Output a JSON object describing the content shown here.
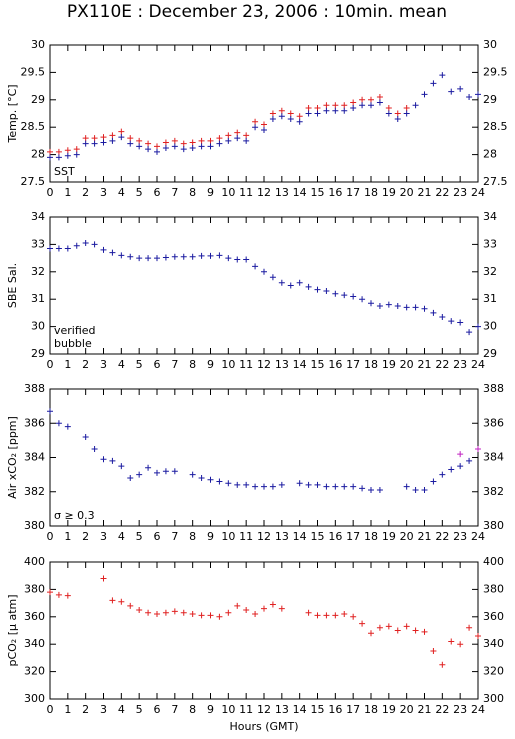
{
  "title": "PX110E : December 23, 2006 : 10min. mean",
  "chart_data": [
    {
      "type": "scatter",
      "ylabel": "Temp. [°C]",
      "xlim": [
        0,
        24
      ],
      "xticks": [
        0,
        1,
        2,
        3,
        4,
        5,
        6,
        7,
        8,
        9,
        10,
        11,
        12,
        13,
        14,
        15,
        16,
        17,
        18,
        19,
        20,
        21,
        22,
        23,
        24
      ],
      "ylim": [
        27.5,
        30
      ],
      "yticks": [
        27.5,
        28,
        28.5,
        29,
        29.5,
        30
      ],
      "x": [
        0,
        0.5,
        1,
        1.5,
        2,
        2.5,
        3,
        3.5,
        4,
        4.5,
        5,
        5.5,
        6,
        6.5,
        7,
        7.5,
        8,
        8.5,
        9,
        9.5,
        10,
        10.5,
        11,
        11.5,
        12,
        12.5,
        13,
        13.5,
        14,
        14.5,
        15,
        15.5,
        16,
        16.5,
        17,
        17.5,
        18,
        18.5,
        19,
        19.5,
        20,
        20.5,
        21,
        21.5,
        22,
        22.5,
        23,
        23.5,
        24
      ],
      "series": [
        {
          "color": "#e02020",
          "values": [
            28.05,
            28.05,
            28.08,
            28.1,
            28.3,
            28.3,
            28.32,
            28.35,
            28.42,
            28.3,
            28.25,
            28.2,
            28.15,
            28.22,
            28.25,
            28.2,
            28.22,
            28.25,
            28.25,
            28.3,
            28.35,
            28.4,
            28.35,
            28.6,
            28.55,
            28.75,
            28.8,
            28.75,
            28.7,
            28.85,
            28.85,
            28.9,
            28.9,
            28.9,
            28.95,
            29.0,
            29.0,
            29.05,
            28.85,
            28.75,
            28.85,
            null,
            null,
            null,
            null,
            null,
            null,
            null,
            null
          ]
        },
        {
          "name": "SST",
          "color": "#1a1aa0",
          "values": [
            27.95,
            27.95,
            27.98,
            28.0,
            28.2,
            28.2,
            28.22,
            28.25,
            28.32,
            28.2,
            28.15,
            28.1,
            28.05,
            28.12,
            28.15,
            28.1,
            28.12,
            28.15,
            28.15,
            28.2,
            28.25,
            28.3,
            28.25,
            28.5,
            28.45,
            28.65,
            28.7,
            28.65,
            28.6,
            28.75,
            28.75,
            28.8,
            28.8,
            28.8,
            28.85,
            28.9,
            28.9,
            28.95,
            28.75,
            28.65,
            28.75,
            28.9,
            29.1,
            29.3,
            29.45,
            29.15,
            29.2,
            29.05,
            29.1
          ]
        }
      ]
    },
    {
      "type": "scatter",
      "ylabel": "SBE Sal.",
      "xlim": [
        0,
        24
      ],
      "xticks": [
        0,
        1,
        2,
        3,
        4,
        5,
        6,
        7,
        8,
        9,
        10,
        11,
        12,
        13,
        14,
        15,
        16,
        17,
        18,
        19,
        20,
        21,
        22,
        23,
        24
      ],
      "ylim": [
        29,
        34
      ],
      "yticks": [
        29,
        30,
        31,
        32,
        33,
        34
      ],
      "x": [
        0,
        0.5,
        1,
        1.5,
        2,
        2.5,
        3,
        3.5,
        4,
        4.5,
        5,
        5.5,
        6,
        6.5,
        7,
        7.5,
        8,
        8.5,
        9,
        9.5,
        10,
        10.5,
        11,
        11.5,
        12,
        12.5,
        13,
        13.5,
        14,
        14.5,
        15,
        15.5,
        16,
        16.5,
        17,
        17.5,
        18,
        18.5,
        19,
        19.5,
        20,
        20.5,
        21,
        21.5,
        22,
        22.5,
        23,
        23.5,
        24
      ],
      "series": [
        {
          "name": "verified",
          "color": "#1a1aa0",
          "values": [
            32.85,
            32.85,
            32.85,
            32.95,
            33.05,
            33.0,
            32.8,
            32.7,
            32.6,
            32.55,
            32.5,
            32.5,
            32.5,
            32.52,
            32.55,
            32.55,
            32.55,
            32.58,
            32.58,
            32.6,
            32.5,
            32.45,
            32.45,
            32.2,
            32.0,
            31.8,
            31.6,
            31.5,
            31.6,
            31.45,
            31.35,
            31.3,
            31.2,
            31.15,
            31.1,
            31.0,
            30.85,
            30.75,
            30.8,
            30.75,
            30.7,
            30.7,
            30.65,
            30.5,
            30.35,
            30.2,
            30.15,
            29.8,
            30.0
          ]
        },
        {
          "name": "bubble",
          "color": "#c020c0",
          "values": [
            null,
            null,
            null,
            null,
            null,
            null,
            null,
            null,
            null,
            null,
            null,
            null,
            null,
            null,
            null,
            null,
            null,
            null,
            null,
            null,
            null,
            null,
            null,
            null,
            null,
            null,
            null,
            null,
            null,
            null,
            null,
            null,
            null,
            null,
            null,
            null,
            null,
            null,
            null,
            null,
            null,
            null,
            null,
            null,
            null,
            null,
            null,
            null,
            null
          ]
        }
      ]
    },
    {
      "type": "scatter",
      "ylabel": "Air xCO₂ [ppm]",
      "xlim": [
        0,
        24
      ],
      "xticks": [
        0,
        1,
        2,
        3,
        4,
        5,
        6,
        7,
        8,
        9,
        10,
        11,
        12,
        13,
        14,
        15,
        16,
        17,
        18,
        19,
        20,
        21,
        22,
        23,
        24
      ],
      "ylim": [
        380,
        388
      ],
      "yticks": [
        380,
        382,
        384,
        386,
        388
      ],
      "x": [
        0,
        0.5,
        1,
        1.5,
        2,
        2.5,
        3,
        3.5,
        4,
        4.5,
        5,
        5.5,
        6,
        6.5,
        7,
        7.5,
        8,
        8.5,
        9,
        9.5,
        10,
        10.5,
        11,
        11.5,
        12,
        12.5,
        13,
        13.5,
        14,
        14.5,
        15,
        15.5,
        16,
        16.5,
        17,
        17.5,
        18,
        18.5,
        19,
        19.5,
        20,
        20.5,
        21,
        21.5,
        22,
        22.5,
        23,
        23.5,
        24
      ],
      "series": [
        {
          "color": "#1a1aa0",
          "values": [
            386.7,
            386.0,
            385.8,
            null,
            385.2,
            384.5,
            383.9,
            383.8,
            383.5,
            382.8,
            383.0,
            383.4,
            383.1,
            383.2,
            383.2,
            null,
            383.0,
            382.8,
            382.7,
            382.6,
            382.5,
            382.4,
            382.4,
            382.3,
            382.3,
            382.3,
            382.4,
            null,
            382.5,
            382.4,
            382.4,
            382.3,
            382.3,
            382.3,
            382.3,
            382.2,
            382.1,
            382.1,
            null,
            null,
            382.3,
            382.1,
            382.1,
            382.6,
            383.0,
            383.3,
            383.5,
            383.8,
            null
          ]
        },
        {
          "name": "σ ≥ 0.3",
          "color": "#c020c0",
          "values": [
            null,
            null,
            null,
            null,
            null,
            null,
            null,
            null,
            null,
            null,
            null,
            null,
            null,
            null,
            null,
            null,
            null,
            null,
            null,
            null,
            null,
            null,
            null,
            null,
            null,
            null,
            null,
            null,
            null,
            null,
            null,
            null,
            null,
            null,
            null,
            null,
            null,
            null,
            null,
            null,
            null,
            null,
            null,
            null,
            null,
            null,
            384.2,
            null,
            384.5
          ]
        }
      ]
    },
    {
      "type": "scatter",
      "ylabel": "pCO₂ [μ atm]",
      "xlabel": "Hours (GMT)",
      "xlim": [
        0,
        24
      ],
      "xticks": [
        0,
        1,
        2,
        3,
        4,
        5,
        6,
        7,
        8,
        9,
        10,
        11,
        12,
        13,
        14,
        15,
        16,
        17,
        18,
        19,
        20,
        21,
        22,
        23,
        24
      ],
      "ylim": [
        300,
        400
      ],
      "yticks": [
        300,
        320,
        340,
        360,
        380,
        400
      ],
      "x": [
        0,
        0.5,
        1,
        1.5,
        2,
        2.5,
        3,
        3.5,
        4,
        4.5,
        5,
        5.5,
        6,
        6.5,
        7,
        7.5,
        8,
        8.5,
        9,
        9.5,
        10,
        10.5,
        11,
        11.5,
        12,
        12.5,
        13,
        13.5,
        14,
        14.5,
        15,
        15.5,
        16,
        16.5,
        17,
        17.5,
        18,
        18.5,
        19,
        19.5,
        20,
        20.5,
        21,
        21.5,
        22,
        22.5,
        23,
        23.5,
        24
      ],
      "series": [
        {
          "color": "#e02020",
          "values": [
            378,
            376,
            375.5,
            null,
            null,
            null,
            388,
            372,
            371,
            368,
            365,
            363,
            362,
            363,
            364,
            363,
            362,
            361,
            361,
            360,
            363,
            368,
            365,
            362,
            366,
            369,
            366,
            null,
            null,
            363,
            361,
            361,
            361,
            362,
            360,
            355,
            348,
            352,
            353,
            350,
            353,
            350,
            349,
            335,
            325,
            342,
            340,
            352,
            346
          ]
        }
      ]
    }
  ]
}
